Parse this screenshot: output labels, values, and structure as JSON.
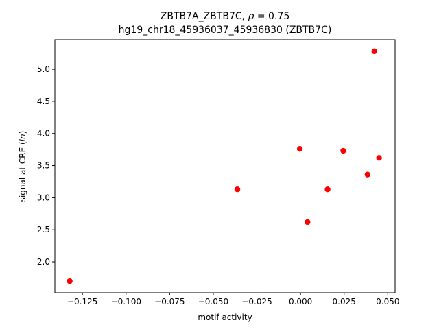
{
  "chart_data": {
    "type": "scatter",
    "title": "ZBTB7A_ZBTB7C, ρ = 0.75",
    "title_line1_prefix": "ZBTB7A_ZBTB7C, ",
    "title_rho_symbol": "ρ",
    "title_rho_value": " = 0.75",
    "subtitle": "hg19_chr18_45936037_45936830 (ZBTB7C)",
    "xlabel": "motif activity",
    "ylabel_prefix": "signal at CRE (",
    "ylabel_italic": "ln",
    "ylabel_suffix": ")",
    "xlim": [
      -0.1408,
      0.0542
    ],
    "ylim": [
      1.52,
      5.46
    ],
    "x_ticks": [
      -0.125,
      -0.1,
      -0.075,
      -0.05,
      -0.025,
      0.0,
      0.025,
      0.05
    ],
    "x_tick_labels": [
      "−0.125",
      "−0.100",
      "−0.075",
      "−0.050",
      "−0.025",
      "0.000",
      "0.025",
      "0.050"
    ],
    "y_ticks": [
      2.0,
      2.5,
      3.0,
      3.5,
      4.0,
      4.5,
      5.0
    ],
    "y_tick_labels": [
      "2.0",
      "2.5",
      "3.0",
      "3.5",
      "4.0",
      "4.5",
      "5.0"
    ],
    "marker_color": "#ff0000",
    "grid": false,
    "points": [
      {
        "x": -0.1323,
        "y": 1.7
      },
      {
        "x": -0.0362,
        "y": 3.13
      },
      {
        "x": -0.0004,
        "y": 3.76
      },
      {
        "x": 0.004,
        "y": 2.62
      },
      {
        "x": 0.0155,
        "y": 3.13
      },
      {
        "x": 0.0245,
        "y": 3.73
      },
      {
        "x": 0.0384,
        "y": 3.36
      },
      {
        "x": 0.0423,
        "y": 5.28
      },
      {
        "x": 0.045,
        "y": 3.62
      }
    ]
  }
}
